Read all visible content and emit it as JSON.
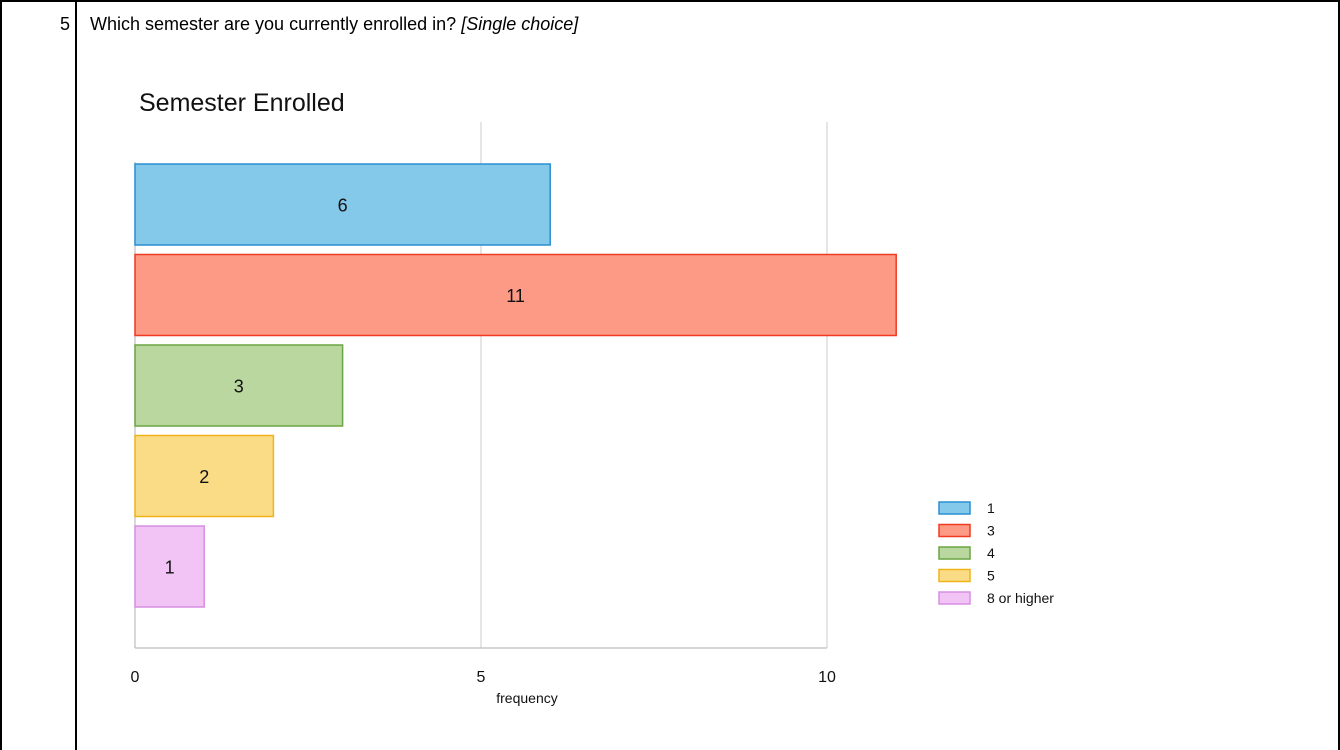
{
  "question": {
    "number": "5",
    "text": "Which semester are you currently enrolled in?",
    "type_label": "[Single choice]"
  },
  "chart_data": {
    "type": "bar",
    "orientation": "horizontal",
    "title": "Semester Enrolled",
    "xlabel": "frequency",
    "ylabel": "",
    "xlim": [
      0,
      11
    ],
    "xticks": [
      0,
      5,
      10
    ],
    "grid": true,
    "legend_position": "right",
    "categories": [
      "1",
      "3",
      "4",
      "5",
      "8 or higher"
    ],
    "values": [
      6,
      11,
      3,
      2,
      1
    ],
    "colors": [
      {
        "fill": "#84c8ea",
        "stroke": "#2b8fd1"
      },
      {
        "fill": "#fd9a86",
        "stroke": "#ee3b22"
      },
      {
        "fill": "#bbd7a0",
        "stroke": "#6aa643"
      },
      {
        "fill": "#fbdc86",
        "stroke": "#f0b31a"
      },
      {
        "fill": "#f2c4f5",
        "stroke": "#d68fe1"
      }
    ]
  }
}
